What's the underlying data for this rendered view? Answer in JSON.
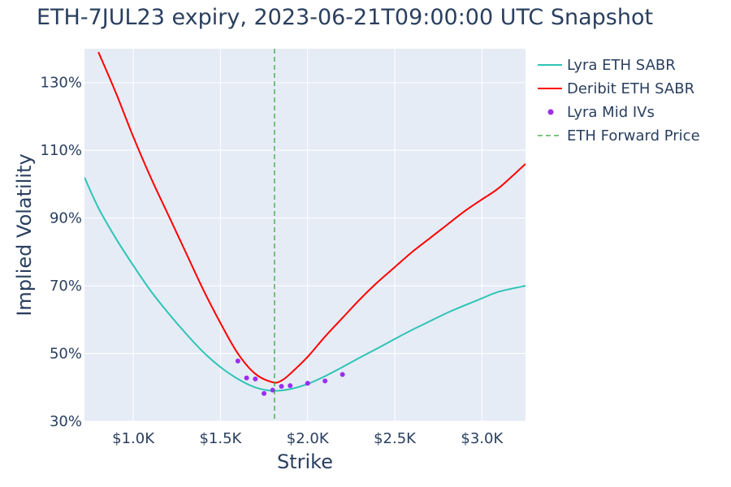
{
  "chart_data": {
    "type": "line",
    "title": "ETH-7JUL23 expiry, 2023-06-21T09:00:00 UTC Snapshot",
    "xlabel": "Strike",
    "ylabel": "Implied Volatility",
    "xlim": [
      720,
      3250
    ],
    "ylim": [
      30,
      140
    ],
    "x_ticks": [
      {
        "value": 1000,
        "label": "$1.0K"
      },
      {
        "value": 1500,
        "label": "$1.5K"
      },
      {
        "value": 2000,
        "label": "$2.0K"
      },
      {
        "value": 2500,
        "label": "$2.5K"
      },
      {
        "value": 3000,
        "label": "$3.0K"
      }
    ],
    "y_ticks": [
      {
        "value": 30,
        "label": "30%"
      },
      {
        "value": 50,
        "label": "50%"
      },
      {
        "value": 70,
        "label": "70%"
      },
      {
        "value": 90,
        "label": "90%"
      },
      {
        "value": 110,
        "label": "110%"
      },
      {
        "value": 130,
        "label": "130%"
      }
    ],
    "grid": true,
    "legend_position": "top-right outside",
    "series": [
      {
        "name": "Lyra ETH SABR",
        "kind": "line",
        "color": "#2ec4b6",
        "x": [
          720,
          800,
          900,
          1000,
          1100,
          1200,
          1300,
          1400,
          1500,
          1600,
          1700,
          1800,
          1900,
          2000,
          2100,
          2200,
          2300,
          2400,
          2500,
          2600,
          2700,
          2800,
          2900,
          3000,
          3100,
          3250
        ],
        "y": [
          102,
          93,
          84,
          76,
          68.5,
          62,
          56,
          50.5,
          46,
          42.5,
          40,
          39,
          39.5,
          41,
          43.3,
          46,
          48.8,
          51.5,
          54.3,
          57,
          59.5,
          62,
          64.2,
          66.3,
          68.3,
          70
        ]
      },
      {
        "name": "Deribit ETH SABR",
        "kind": "line",
        "color": "#ff0000",
        "x": [
          800,
          900,
          1000,
          1100,
          1200,
          1300,
          1400,
          1500,
          1600,
          1700,
          1800,
          1850,
          1900,
          2000,
          2100,
          2200,
          2300,
          2400,
          2500,
          2600,
          2700,
          2800,
          2900,
          3000,
          3100,
          3250
        ],
        "y": [
          139,
          127,
          114,
          102,
          91,
          80,
          69,
          59,
          50,
          44,
          41.5,
          42,
          44,
          49,
          55,
          60.5,
          66,
          71,
          75.5,
          80,
          84,
          88,
          92,
          95.5,
          99,
          106
        ]
      },
      {
        "name": "Lyra Mid IVs",
        "kind": "markers",
        "color": "#9b2df0",
        "x": [
          1600,
          1650,
          1700,
          1750,
          1800,
          1850,
          1900,
          2000,
          2100,
          2200
        ],
        "y": [
          47.8,
          42.8,
          42.5,
          38.2,
          39.2,
          40.3,
          40.5,
          41.2,
          41.9,
          43.8
        ]
      },
      {
        "name": "ETH Forward Price",
        "kind": "vline",
        "color": "#2ca02c",
        "dash": true,
        "x": 1810
      }
    ]
  }
}
